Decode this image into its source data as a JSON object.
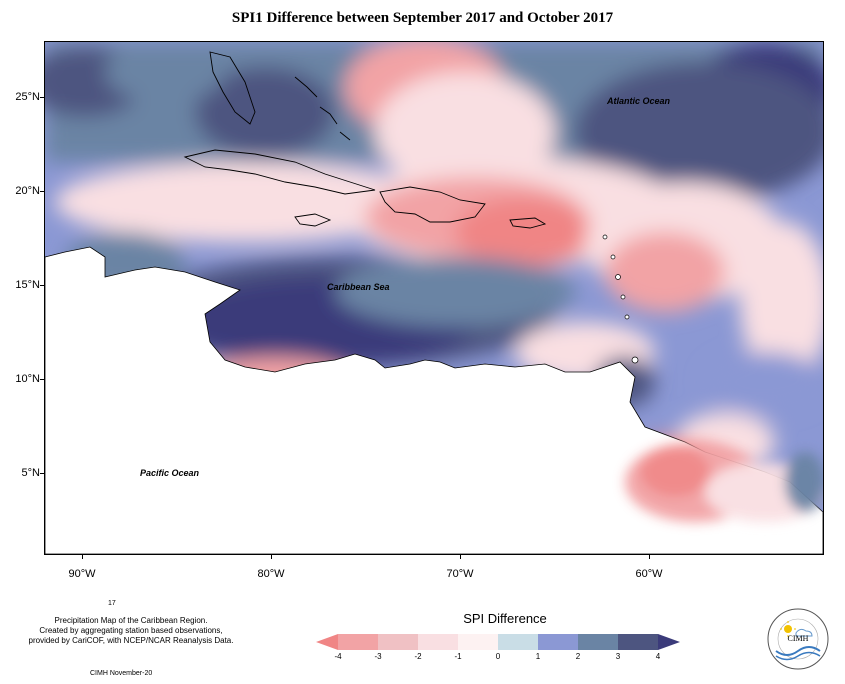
{
  "title": "SPI1 Difference between September 2017 and October 2017",
  "map": {
    "region": "Caribbean",
    "lon_range": [
      -92,
      -52
    ],
    "lat_range": [
      1.5,
      28.5
    ],
    "latitude_labels": [
      "25°N",
      "20°N",
      "15°N",
      "10°N",
      "5°N"
    ],
    "longitude_labels": [
      "90°W",
      "80°W",
      "70°W",
      "60°W"
    ],
    "place_labels": {
      "atlantic": "Atlantic Ocean",
      "caribbean": "Caribbean Sea",
      "pacific": "Pacific Ocean"
    }
  },
  "legend": {
    "title": "SPI Difference",
    "tick_labels": [
      "-4",
      "-3",
      "-2",
      "-1",
      "0",
      "1",
      "2",
      "3",
      "4"
    ],
    "classes": [
      {
        "range": "<-4",
        "color": "#f08585"
      },
      {
        "range": "-4 to -3",
        "color": "#f2a3a5"
      },
      {
        "range": "-3 to -2",
        "color": "#f0c1c4"
      },
      {
        "range": "-2 to -1",
        "color": "#f9dfe2"
      },
      {
        "range": "-1 to 0",
        "color": "#fdf2f2"
      },
      {
        "range": "0 to 1",
        "color": "#c9dde6"
      },
      {
        "range": "1 to 2",
        "color": "#8b98d4"
      },
      {
        "range": "2 to 3",
        "color": "#6a84a4"
      },
      {
        "range": "3 to 4",
        "color": "#4d5580"
      },
      {
        "range": ">4",
        "color": "#3b3b7a"
      }
    ]
  },
  "footer": {
    "number": "17",
    "description_lines": [
      "Precipitation Map of the Caribbean Region.",
      "Created by aggregating station based observations,",
      "provided by CariCOF, with NCEP/NCAR Reanalysis Data."
    ],
    "credit": "CIMH November-20"
  },
  "logo": {
    "text": "CIMH",
    "icon": "sun-cloud-rain-logo"
  }
}
